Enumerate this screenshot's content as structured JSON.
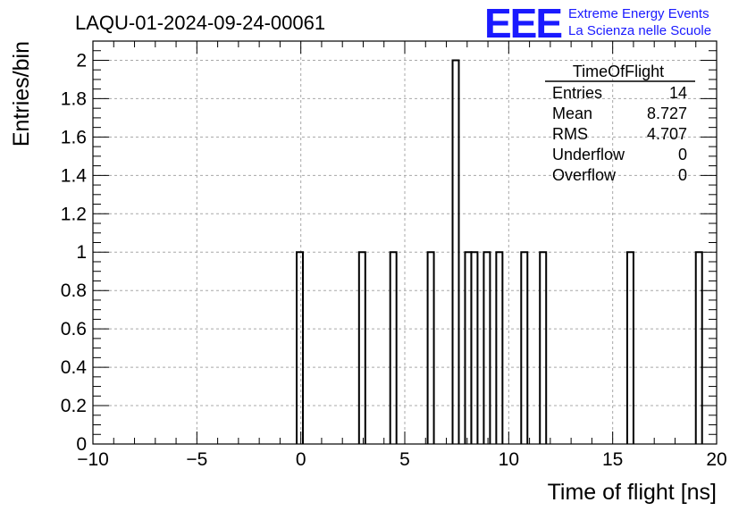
{
  "header": {
    "title": "LAQU-01-2024-09-24-00061",
    "logo": {
      "mark": "EEE",
      "line1": "Extreme Energy Events",
      "line2": "La Scienza nelle Scuole"
    }
  },
  "stats_box": {
    "name": "TimeOfFlight",
    "rows": [
      {
        "label": "Entries",
        "value": "14"
      },
      {
        "label": "Mean",
        "value": "8.727"
      },
      {
        "label": "RMS",
        "value": "4.707"
      },
      {
        "label": "Underflow",
        "value": "0"
      },
      {
        "label": "Overflow",
        "value": "0"
      }
    ]
  },
  "chart_data": {
    "type": "bar",
    "xlabel": "Time of flight [ns]",
    "ylabel": "Entries/bin",
    "xlim": [
      -10,
      20
    ],
    "ylim": [
      0,
      2.1
    ],
    "grid": true,
    "bin_width": 0.3,
    "xticks": [
      -10,
      -5,
      0,
      5,
      10,
      15,
      20
    ],
    "xtick_labels": [
      "−10",
      "−5",
      "0",
      "5",
      "10",
      "15",
      "20"
    ],
    "yticks": [
      0,
      0.2,
      0.4,
      0.6,
      0.8,
      1,
      1.2,
      1.4,
      1.6,
      1.8,
      2
    ],
    "ytick_labels": [
      "0",
      "0.2",
      "0.4",
      "0.6",
      "0.8",
      "1",
      "1.2",
      "1.4",
      "1.6",
      "1.8",
      "2"
    ],
    "bins": [
      {
        "x": -0.2,
        "value": 1
      },
      {
        "x": 2.8,
        "value": 1
      },
      {
        "x": 4.3,
        "value": 1
      },
      {
        "x": 6.1,
        "value": 1
      },
      {
        "x": 7.3,
        "value": 2
      },
      {
        "x": 7.9,
        "value": 1
      },
      {
        "x": 8.2,
        "value": 1
      },
      {
        "x": 8.8,
        "value": 1
      },
      {
        "x": 9.4,
        "value": 1
      },
      {
        "x": 10.6,
        "value": 1
      },
      {
        "x": 11.5,
        "value": 1
      },
      {
        "x": 15.7,
        "value": 1
      },
      {
        "x": 19.0,
        "value": 1
      }
    ]
  }
}
